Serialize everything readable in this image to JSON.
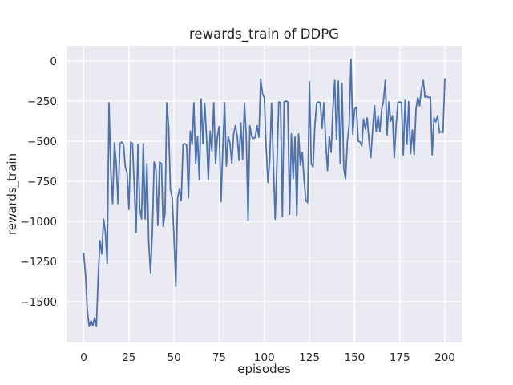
{
  "chart_data": {
    "type": "line",
    "title": "rewards_train of DDPG",
    "xlabel": "episodes",
    "ylabel": "rewards_train",
    "x_ticks": [
      0,
      25,
      50,
      75,
      100,
      125,
      150,
      175,
      200
    ],
    "y_ticks": [
      0,
      -250,
      -500,
      -750,
      -1000,
      -1250,
      -1500
    ],
    "xlim": [
      -10,
      210
    ],
    "ylim": [
      -1755,
      95
    ],
    "grid": true,
    "legend_position": "none",
    "style": "seaborn-darkgrid",
    "series": [
      {
        "name": "rewards_train",
        "color": "#4c72b0",
        "x_start": 0,
        "x_step": 1,
        "y": [
          -1200,
          -1337,
          -1560,
          -1655,
          -1620,
          -1650,
          -1600,
          -1655,
          -1350,
          -1120,
          -1203,
          -987,
          -1070,
          -1262,
          -260,
          -690,
          -890,
          -510,
          -640,
          -890,
          -515,
          -505,
          -520,
          -660,
          -700,
          -925,
          -505,
          -515,
          -790,
          -1070,
          -520,
          -920,
          -985,
          -515,
          -985,
          -640,
          -1135,
          -1320,
          -1060,
          -630,
          -680,
          -1025,
          -630,
          -640,
          -1030,
          -950,
          -260,
          -410,
          -803,
          -853,
          -1100,
          -1403,
          -853,
          -800,
          -870,
          -520,
          -515,
          -525,
          -855,
          -437,
          -520,
          -260,
          -640,
          -470,
          -740,
          -237,
          -515,
          -263,
          -480,
          -740,
          -437,
          -560,
          -260,
          -640,
          -470,
          -408,
          -878,
          -560,
          -260,
          -655,
          -470,
          -515,
          -637,
          -455,
          -403,
          -470,
          -620,
          -387,
          -613,
          -262,
          -470,
          -995,
          -403,
          -470,
          -483,
          -475,
          -403,
          -475,
          -112,
          -203,
          -230,
          -537,
          -758,
          -620,
          -262,
          -637,
          -987,
          -640,
          -255,
          -260,
          -970,
          -255,
          -250,
          -255,
          -957,
          -455,
          -733,
          -473,
          -962,
          -455,
          -650,
          -570,
          -737,
          -870,
          -883,
          -128,
          -640,
          -660,
          -400,
          -263,
          -255,
          -260,
          -420,
          -260,
          -500,
          -683,
          -470,
          -570,
          -300,
          -120,
          -490,
          -125,
          -640,
          -138,
          -670,
          -735,
          -500,
          -400,
          10,
          -457,
          -300,
          -287,
          -500,
          -503,
          -530,
          -362,
          -425,
          -355,
          -500,
          -603,
          -430,
          -278,
          -440,
          -340,
          -440,
          -300,
          -250,
          -120,
          -462,
          -255,
          -375,
          -340,
          -603,
          -400,
          -258,
          -255,
          -260,
          -587,
          -245,
          -520,
          -253,
          -578,
          -430,
          -585,
          -300,
          -228,
          -280,
          -180,
          -120,
          -225,
          -220,
          -228,
          -225,
          -585,
          -353,
          -380,
          -340,
          -447,
          -440,
          -445,
          -111
        ]
      }
    ]
  },
  "colors": {
    "figure_background": "#ffffff",
    "axes_background": "#eaeaf2",
    "gridline": "#ffffff",
    "line": "#4c72b0",
    "text": "#262626"
  }
}
